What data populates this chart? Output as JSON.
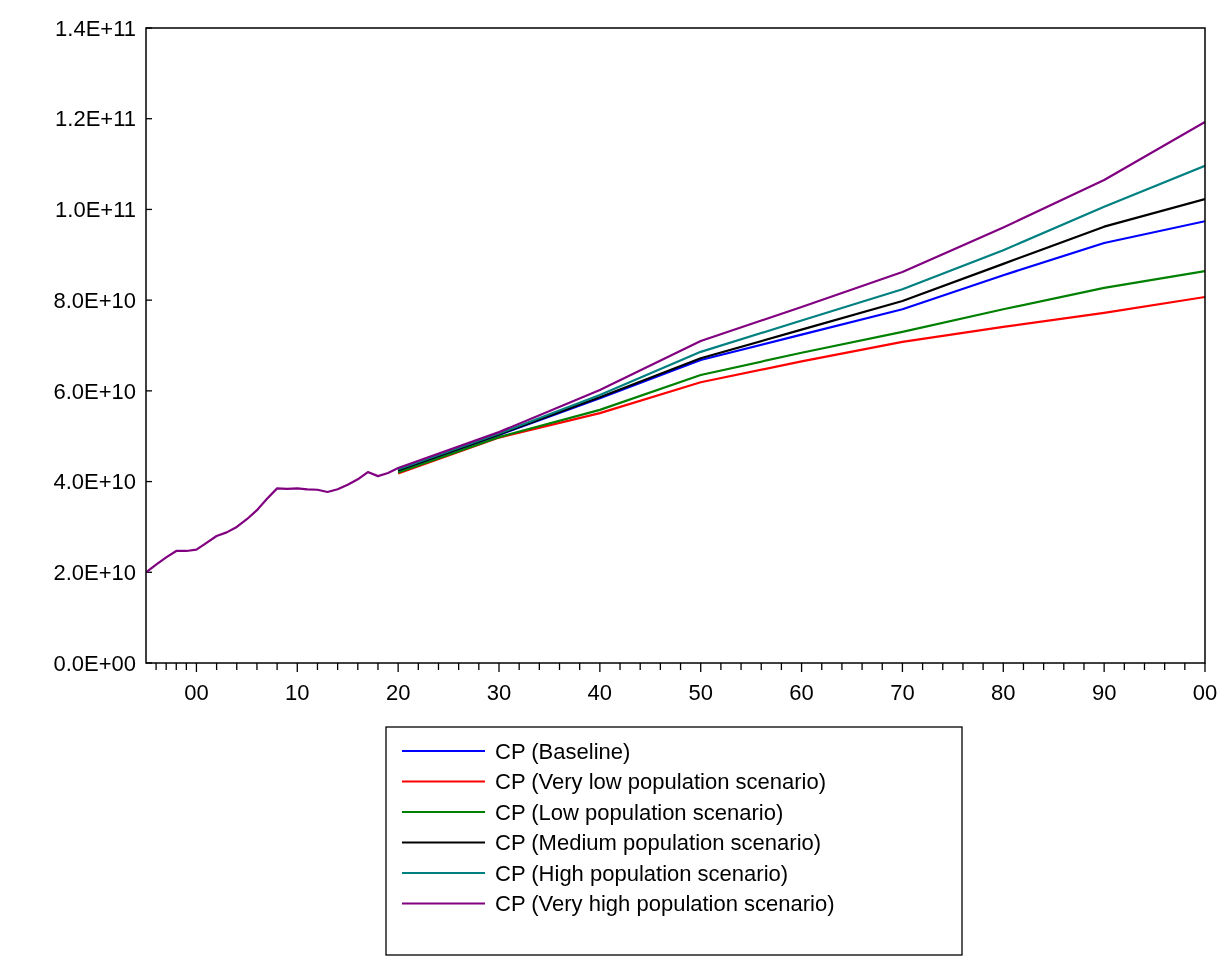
{
  "chart_data": {
    "type": "line",
    "x": [
      1995,
      1996,
      1997,
      1998,
      1999,
      2000,
      2001,
      2002,
      2003,
      2004,
      2005,
      2006,
      2007,
      2008,
      2009,
      2010,
      2011,
      2012,
      2013,
      2014,
      2015,
      2016,
      2017,
      2018,
      2019,
      2020,
      2030,
      2040,
      2050,
      2060,
      2070,
      2080,
      2090,
      2100
    ],
    "series": [
      {
        "name": "CP (Baseline)",
        "color": "#0000ff",
        "values": [
          null,
          null,
          null,
          null,
          null,
          null,
          null,
          null,
          null,
          null,
          null,
          null,
          null,
          null,
          null,
          null,
          null,
          null,
          null,
          null,
          null,
          null,
          null,
          null,
          null,
          42300000000.0,
          50300000000.0,
          58400000000.0,
          66800000000.0,
          72400000000.0,
          78000000000.0,
          85500000000.0,
          92600000000.0,
          97400000000.0
        ]
      },
      {
        "name": "CP (Very low population scenario)",
        "color": "#ff0000",
        "values": [
          null,
          null,
          null,
          null,
          null,
          null,
          null,
          null,
          null,
          null,
          null,
          null,
          null,
          null,
          null,
          null,
          null,
          null,
          null,
          null,
          null,
          null,
          null,
          null,
          null,
          41800000000.0,
          49700000000.0,
          55100000000.0,
          61900000000.0,
          66500000000.0,
          70800000000.0,
          74100000000.0,
          77200000000.0,
          80700000000.0
        ]
      },
      {
        "name": "CP (Low population scenario)",
        "color": "#008000",
        "values": [
          null,
          null,
          null,
          null,
          null,
          null,
          null,
          null,
          null,
          null,
          null,
          null,
          null,
          null,
          null,
          null,
          null,
          null,
          null,
          null,
          null,
          null,
          null,
          null,
          null,
          42000000000.0,
          49800000000.0,
          55800000000.0,
          63500000000.0,
          68400000000.0,
          73000000000.0,
          78000000000.0,
          82700000000.0,
          86400000000.0
        ]
      },
      {
        "name": "CP (Medium population scenario)",
        "color": "#000000",
        "values": [
          null,
          null,
          null,
          null,
          null,
          null,
          null,
          null,
          null,
          null,
          null,
          null,
          null,
          null,
          null,
          null,
          null,
          null,
          null,
          null,
          null,
          null,
          null,
          null,
          null,
          42500000000.0,
          50400000000.0,
          58600000000.0,
          67200000000.0,
          73500000000.0,
          79800000000.0,
          88000000000.0,
          96200000000.0,
          102300000000.0
        ]
      },
      {
        "name": "CP (High population scenario)",
        "color": "#008080",
        "values": [
          null,
          null,
          null,
          null,
          null,
          null,
          null,
          null,
          null,
          null,
          null,
          null,
          null,
          null,
          null,
          null,
          null,
          null,
          null,
          null,
          null,
          null,
          null,
          null,
          null,
          42700000000.0,
          50600000000.0,
          59100000000.0,
          68600000000.0,
          75500000000.0,
          82400000000.0,
          91000000000.0,
          100600000000.0,
          109600000000.0
        ]
      },
      {
        "name": "CP (Very high population scenario)",
        "color": "#800080",
        "values": [
          20000000000.0,
          21700000000.0,
          23300000000.0,
          24700000000.0,
          24700000000.0,
          25000000000.0,
          26500000000.0,
          28000000000.0,
          28800000000.0,
          30000000000.0,
          31700000000.0,
          33700000000.0,
          36200000000.0,
          38500000000.0,
          38400000000.0,
          38500000000.0,
          38300000000.0,
          38200000000.0,
          37700000000.0,
          38300000000.0,
          39300000000.0,
          40500000000.0,
          42100000000.0,
          41200000000.0,
          41900000000.0,
          43000000000.0,
          50900000000.0,
          60200000000.0,
          71000000000.0,
          78500000000.0,
          86200000000.0,
          96000000000.0,
          106500000000.0,
          119300000000.0
        ]
      }
    ],
    "xlim": [
      1995,
      2100
    ],
    "xticks": [
      {
        "value": 1996,
        "label": null
      },
      {
        "value": 1997,
        "label": null
      },
      {
        "value": 1998,
        "label": null
      },
      {
        "value": 1999,
        "label": null
      },
      {
        "value": 2000,
        "label": "00"
      },
      {
        "value": 2002,
        "label": null
      },
      {
        "value": 2004,
        "label": null
      },
      {
        "value": 2006,
        "label": null
      },
      {
        "value": 2008,
        "label": null
      },
      {
        "value": 2010,
        "label": "10"
      },
      {
        "value": 2012,
        "label": null
      },
      {
        "value": 2014,
        "label": null
      },
      {
        "value": 2016,
        "label": null
      },
      {
        "value": 2018,
        "label": null
      },
      {
        "value": 2020,
        "label": "20"
      },
      {
        "value": 2022,
        "label": null
      },
      {
        "value": 2024,
        "label": null
      },
      {
        "value": 2026,
        "label": null
      },
      {
        "value": 2028,
        "label": null
      },
      {
        "value": 2030,
        "label": "30"
      },
      {
        "value": 2032,
        "label": null
      },
      {
        "value": 2034,
        "label": null
      },
      {
        "value": 2036,
        "label": null
      },
      {
        "value": 2038,
        "label": null
      },
      {
        "value": 2040,
        "label": "40"
      },
      {
        "value": 2042,
        "label": null
      },
      {
        "value": 2044,
        "label": null
      },
      {
        "value": 2046,
        "label": null
      },
      {
        "value": 2048,
        "label": null
      },
      {
        "value": 2050,
        "label": "50"
      },
      {
        "value": 2052,
        "label": null
      },
      {
        "value": 2054,
        "label": null
      },
      {
        "value": 2056,
        "label": null
      },
      {
        "value": 2058,
        "label": null
      },
      {
        "value": 2060,
        "label": "60"
      },
      {
        "value": 2062,
        "label": null
      },
      {
        "value": 2064,
        "label": null
      },
      {
        "value": 2066,
        "label": null
      },
      {
        "value": 2068,
        "label": null
      },
      {
        "value": 2070,
        "label": "70"
      },
      {
        "value": 2072,
        "label": null
      },
      {
        "value": 2074,
        "label": null
      },
      {
        "value": 2076,
        "label": null
      },
      {
        "value": 2078,
        "label": null
      },
      {
        "value": 2080,
        "label": "80"
      },
      {
        "value": 2082,
        "label": null
      },
      {
        "value": 2084,
        "label": null
      },
      {
        "value": 2086,
        "label": null
      },
      {
        "value": 2088,
        "label": null
      },
      {
        "value": 2090,
        "label": "90"
      },
      {
        "value": 2092,
        "label": null
      },
      {
        "value": 2094,
        "label": null
      },
      {
        "value": 2096,
        "label": null
      },
      {
        "value": 2098,
        "label": null
      },
      {
        "value": 2100,
        "label": "00"
      }
    ],
    "ylim": [
      0,
      140000000000.0
    ],
    "yticks": [
      {
        "value": 0,
        "label": "0.0E+00"
      },
      {
        "value": 20000000000.0,
        "label": "2.0E+10"
      },
      {
        "value": 40000000000.0,
        "label": "4.0E+10"
      },
      {
        "value": 60000000000.0,
        "label": "6.0E+10"
      },
      {
        "value": 80000000000.0,
        "label": "8.0E+10"
      },
      {
        "value": 100000000000.0,
        "label": "1.0E+11"
      },
      {
        "value": 120000000000.0,
        "label": "1.2E+11"
      },
      {
        "value": 140000000000.0,
        "label": "1.4E+11"
      }
    ],
    "grid": false,
    "legend": "bottom",
    "line_style": "solid"
  }
}
